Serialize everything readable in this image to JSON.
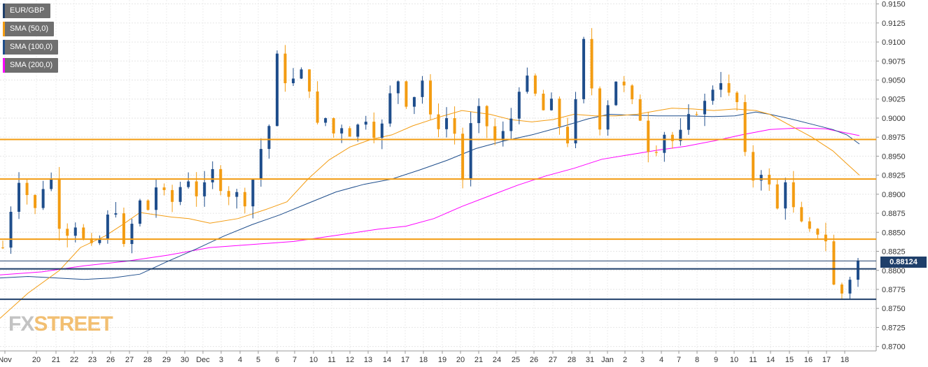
{
  "chart_data": {
    "type": "candlestick",
    "symbol": "EUR/GBP",
    "legend": [
      {
        "label": "EUR/GBP",
        "color": "#1f3f6a"
      },
      {
        "label": "SMA (50,0)",
        "color": "#f39c12"
      },
      {
        "label": "SMA (100,0)",
        "color": "#1f4e8c"
      },
      {
        "label": "SMA (200,0)",
        "color": "#ff00ff"
      }
    ],
    "ylim": [
      0.87,
      0.915
    ],
    "y_ticks": [
      "0.9150",
      "0.9125",
      "0.9100",
      "0.9075",
      "0.9050",
      "0.9025",
      "0.9000",
      "0.8975",
      "0.8950",
      "0.8925",
      "0.8900",
      "0.8875",
      "0.8850",
      "0.8825",
      "0.8800",
      "0.8775",
      "0.8750",
      "0.8725",
      "0.8700"
    ],
    "x_labels": [
      "Nov",
      "20",
      "21",
      "22",
      "23",
      "26",
      "27",
      "28",
      "29",
      "30",
      "Dec",
      "3",
      "4",
      "5",
      "6",
      "7",
      "10",
      "11",
      "12",
      "13",
      "14",
      "17",
      "18",
      "19",
      "20",
      "21",
      "24",
      "25",
      "26",
      "27",
      "28",
      "31",
      "Jan",
      "2",
      "3",
      "4",
      "7",
      "8",
      "9",
      "10",
      "11",
      "14",
      "15",
      "16",
      "17",
      "18"
    ],
    "current_price": "0.88124",
    "current_price_value": 0.88124,
    "horizontal_levels": [
      {
        "value": 0.8972,
        "color": "#f39c12"
      },
      {
        "value": 0.892,
        "color": "#f39c12"
      },
      {
        "value": 0.8841,
        "color": "#f39c12"
      },
      {
        "value": 0.8802,
        "color": "#1f3f6a"
      },
      {
        "value": 0.8762,
        "color": "#1f3f6a"
      }
    ],
    "candle_anchors": [
      0.883,
      0.888,
      0.892,
      0.89,
      0.888,
      0.891,
      0.892,
      0.886,
      0.885,
      0.886,
      0.884,
      0.883,
      0.884,
      0.887,
      0.888,
      0.883,
      0.886,
      0.889,
      0.888,
      0.891,
      0.89,
      0.889,
      0.891,
      0.892,
      0.89,
      0.891,
      0.893,
      0.891,
      0.89,
      0.89,
      0.889,
      0.892,
      0.896,
      0.899,
      0.908,
      0.905,
      0.905,
      0.906,
      0.904,
      0.899,
      0.9,
      0.898,
      0.899,
      0.898,
      0.899,
      0.9,
      0.898,
      0.899,
      0.903,
      0.905,
      0.902,
      0.903,
      0.905,
      0.9,
      0.899,
      0.9,
      0.898,
      0.892,
      0.899,
      0.901,
      0.899,
      0.897,
      0.898,
      0.9,
      0.904,
      0.905,
      0.903,
      0.901,
      0.902,
      0.899,
      0.897,
      0.902,
      0.91,
      0.904,
      0.899,
      0.902,
      0.905,
      0.904,
      0.902,
      0.9,
      0.896,
      0.896,
      0.898,
      0.897,
      0.898,
      0.9,
      0.901,
      0.902,
      0.904,
      0.905,
      0.903,
      0.902,
      0.895,
      0.892,
      0.893,
      0.891,
      0.888,
      0.892,
      0.888,
      0.886,
      0.885,
      0.885,
      0.884,
      0.878,
      0.877,
      0.879,
      0.8812
    ],
    "sma50": [
      [
        0,
        0.8737
      ],
      [
        40,
        0.877
      ],
      [
        85,
        0.88
      ],
      [
        115,
        0.883
      ],
      [
        150,
        0.8845
      ],
      [
        175,
        0.886
      ],
      [
        200,
        0.8876
      ],
      [
        245,
        0.887
      ],
      [
        270,
        0.8868
      ],
      [
        300,
        0.8862
      ],
      [
        340,
        0.8868
      ],
      [
        380,
        0.888
      ],
      [
        410,
        0.889
      ],
      [
        440,
        0.892
      ],
      [
        470,
        0.8945
      ],
      [
        500,
        0.8962
      ],
      [
        530,
        0.8972
      ],
      [
        560,
        0.8978
      ],
      [
        590,
        0.899
      ],
      [
        630,
        0.9002
      ],
      [
        660,
        0.901
      ],
      [
        700,
        0.9005
      ],
      [
        730,
        0.8998
      ],
      [
        760,
        0.8995
      ],
      [
        790,
        0.8998
      ],
      [
        820,
        0.9005
      ],
      [
        850,
        0.9003
      ],
      [
        880,
        0.9003
      ],
      [
        910,
        0.9005
      ],
      [
        940,
        0.901
      ],
      [
        960,
        0.9013
      ],
      [
        990,
        0.9012
      ],
      [
        1020,
        0.901
      ],
      [
        1050,
        0.9012
      ],
      [
        1080,
        0.901
      ],
      [
        1100,
        0.9005
      ],
      [
        1130,
        0.899
      ],
      [
        1160,
        0.8975
      ],
      [
        1190,
        0.8957
      ],
      [
        1210,
        0.894
      ],
      [
        1228,
        0.8925
      ]
    ],
    "sma100": [
      [
        0,
        0.879
      ],
      [
        40,
        0.8792
      ],
      [
        80,
        0.879
      ],
      [
        120,
        0.8788
      ],
      [
        160,
        0.879
      ],
      [
        200,
        0.8795
      ],
      [
        240,
        0.8812
      ],
      [
        280,
        0.8828
      ],
      [
        320,
        0.8845
      ],
      [
        360,
        0.886
      ],
      [
        400,
        0.8873
      ],
      [
        440,
        0.8888
      ],
      [
        480,
        0.8903
      ],
      [
        520,
        0.8913
      ],
      [
        560,
        0.892
      ],
      [
        600,
        0.8932
      ],
      [
        640,
        0.8945
      ],
      [
        680,
        0.896
      ],
      [
        720,
        0.897
      ],
      [
        760,
        0.8978
      ],
      [
        800,
        0.8988
      ],
      [
        840,
        0.8999
      ],
      [
        870,
        0.9005
      ],
      [
        900,
        0.9004
      ],
      [
        940,
        0.9003
      ],
      [
        980,
        0.9003
      ],
      [
        1020,
        0.9002
      ],
      [
        1050,
        0.9003
      ],
      [
        1080,
        0.9008
      ],
      [
        1100,
        0.9005
      ],
      [
        1130,
        0.8999
      ],
      [
        1160,
        0.8992
      ],
      [
        1190,
        0.8985
      ],
      [
        1210,
        0.8978
      ],
      [
        1228,
        0.8966
      ]
    ],
    "sma200": [
      [
        0,
        0.8794
      ],
      [
        60,
        0.8798
      ],
      [
        120,
        0.8806
      ],
      [
        180,
        0.8812
      ],
      [
        240,
        0.882
      ],
      [
        300,
        0.883
      ],
      [
        360,
        0.8834
      ],
      [
        420,
        0.8838
      ],
      [
        480,
        0.8846
      ],
      [
        540,
        0.8854
      ],
      [
        580,
        0.8858
      ],
      [
        620,
        0.8868
      ],
      [
        660,
        0.8884
      ],
      [
        700,
        0.8898
      ],
      [
        740,
        0.8912
      ],
      [
        780,
        0.8924
      ],
      [
        820,
        0.8934
      ],
      [
        860,
        0.8946
      ],
      [
        900,
        0.8952
      ],
      [
        940,
        0.8958
      ],
      [
        980,
        0.8963
      ],
      [
        1020,
        0.897
      ],
      [
        1060,
        0.8978
      ],
      [
        1100,
        0.8985
      ],
      [
        1140,
        0.8987
      ],
      [
        1180,
        0.8986
      ],
      [
        1228,
        0.8977
      ]
    ],
    "grid": true
  },
  "watermark": {
    "part1": "FX",
    "part2": "STREET"
  }
}
